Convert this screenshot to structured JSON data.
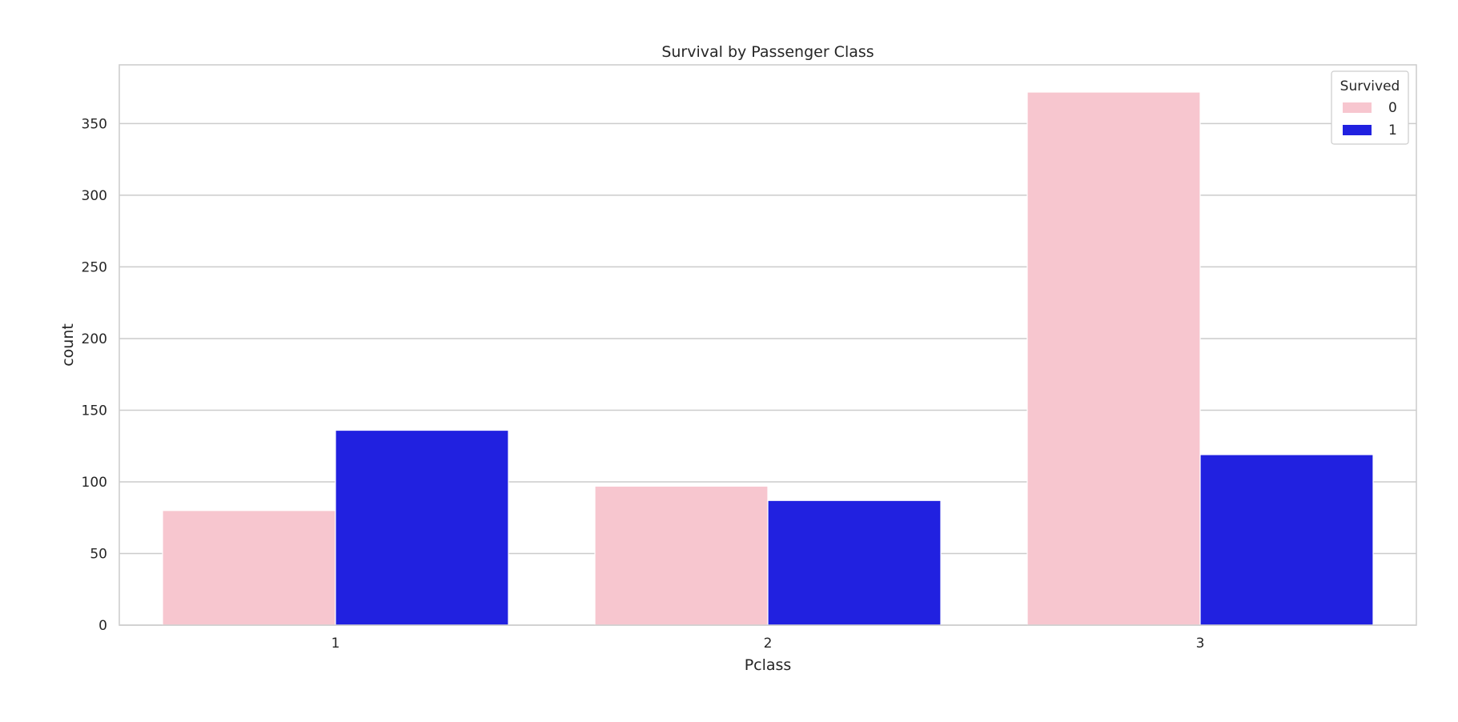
{
  "chart_data": {
    "type": "bar",
    "title": "Survival by Passenger Class",
    "xlabel": "Pclass",
    "ylabel": "count",
    "categories": [
      "1",
      "2",
      "3"
    ],
    "series": [
      {
        "name": "0",
        "values": [
          80,
          97,
          372
        ],
        "color": "#f7c6cf"
      },
      {
        "name": "1",
        "values": [
          136,
          87,
          119
        ],
        "color": "#2121e0"
      }
    ],
    "ylim": [
      0,
      391
    ],
    "yticks": [
      0,
      50,
      100,
      150,
      200,
      250,
      300,
      350
    ],
    "grid": true,
    "grid_axis": "y",
    "legend": {
      "title": "Survived",
      "placement": "top-right"
    }
  }
}
